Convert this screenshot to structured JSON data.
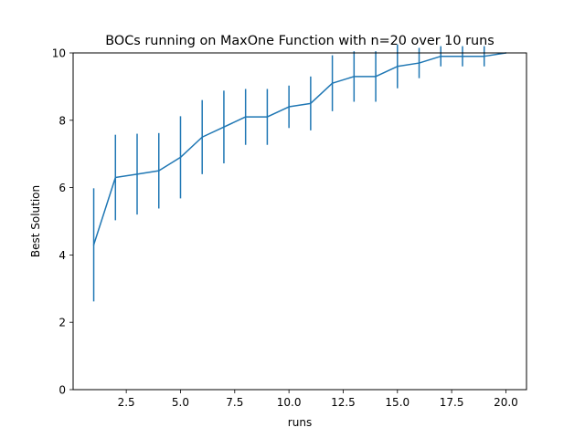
{
  "chart_data": {
    "type": "line",
    "title": "BOCs running on MaxOne Function with n=20 over 10 runs",
    "xlabel": "runs",
    "ylabel": "Best Solution",
    "xlim": [
      0.05,
      20.95
    ],
    "ylim": [
      0,
      10
    ],
    "xticks": [
      2.5,
      5.0,
      7.5,
      10.0,
      12.5,
      15.0,
      17.5,
      20.0
    ],
    "xtick_labels": [
      "2.5",
      "5.0",
      "7.5",
      "10.0",
      "12.5",
      "15.0",
      "17.5",
      "20.0"
    ],
    "yticks": [
      0,
      2,
      4,
      6,
      8,
      10
    ],
    "ytick_labels": [
      "0",
      "2",
      "4",
      "6",
      "8",
      "10"
    ],
    "grid": false,
    "legend": "none",
    "series": [
      {
        "color": "#1f77b4",
        "x": [
          1,
          2,
          3,
          4,
          5,
          6,
          7,
          8,
          9,
          10,
          11,
          12,
          13,
          14,
          15,
          16,
          17,
          18,
          19,
          20
        ],
        "y": [
          4.3,
          6.3,
          6.4,
          6.5,
          6.9,
          7.5,
          7.8,
          8.1,
          8.1,
          8.4,
          8.5,
          9.1,
          9.3,
          9.3,
          9.6,
          9.7,
          9.9,
          9.9,
          9.9,
          10.0
        ],
        "err_low": [
          2.62,
          5.03,
          5.2,
          5.38,
          5.68,
          6.4,
          6.72,
          7.27,
          7.27,
          7.77,
          7.7,
          8.27,
          8.55,
          8.55,
          8.95,
          9.25,
          9.6,
          9.6,
          9.6,
          10.0
        ],
        "err_high": [
          5.98,
          7.57,
          7.6,
          7.62,
          8.12,
          8.6,
          8.88,
          8.93,
          8.93,
          9.03,
          9.3,
          9.93,
          10.05,
          10.05,
          10.25,
          10.15,
          10.2,
          10.2,
          10.2,
          10.0
        ]
      }
    ]
  }
}
